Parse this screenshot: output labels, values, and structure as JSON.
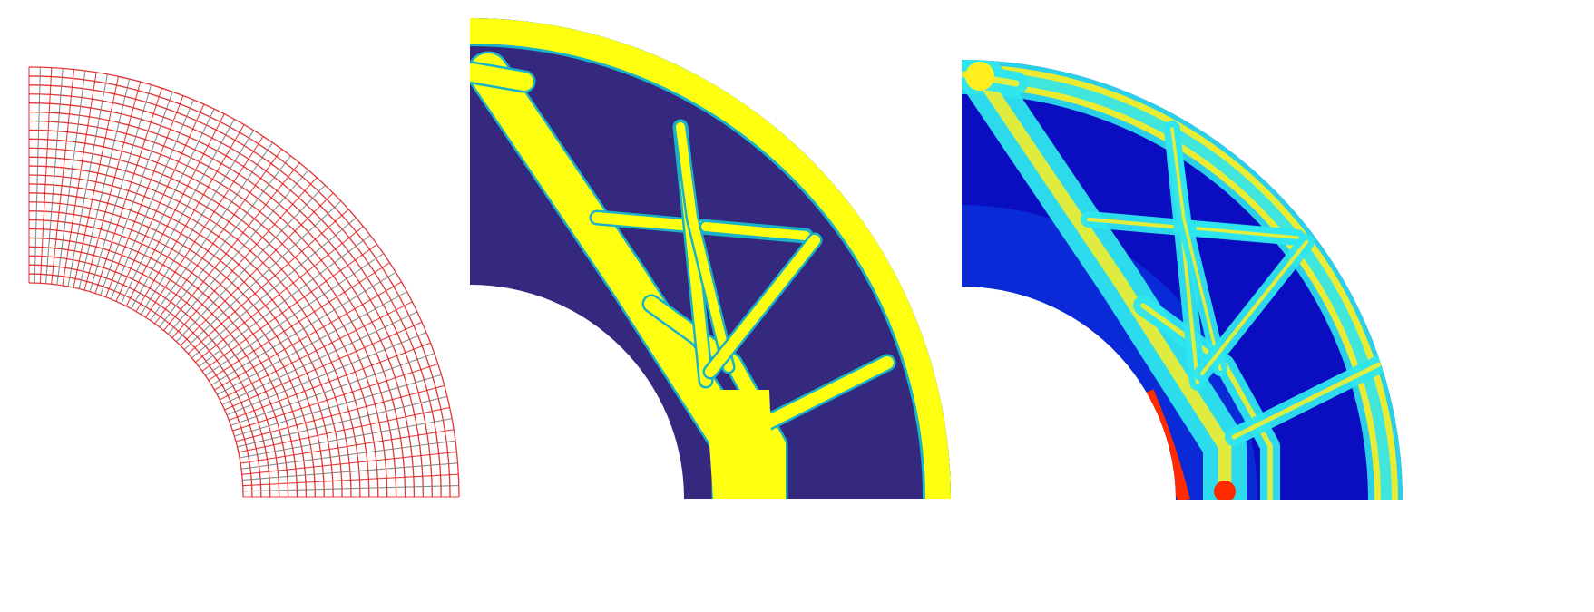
{
  "figure": {
    "panels": [
      {
        "id": "mesh",
        "kind": "structured-mesh",
        "mesh_color": "#e02020",
        "radial_divisions": 24,
        "angular_divisions": 60
      },
      {
        "id": "density",
        "kind": "topology-density",
        "colors": {
          "void": "#34287f",
          "solid": "#ffff10",
          "edge": "#19b3c8"
        }
      },
      {
        "id": "field",
        "kind": "stress-field",
        "colors": {
          "background": "#0a0ec0",
          "low": "#0a3ee8",
          "mid": "#2ee6ee",
          "high": "#ffee20",
          "peak": "#ff2a00"
        }
      }
    ]
  }
}
